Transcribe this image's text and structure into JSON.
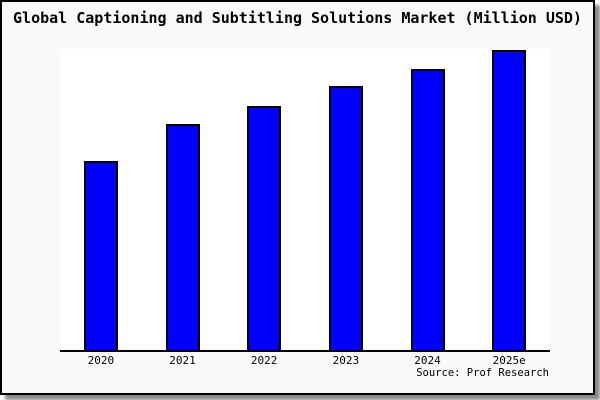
{
  "title": "Global Captioning and Subtitling Solutions Market (Million USD)",
  "source": "Source: Prof Research",
  "colors": {
    "figure_background": "#fafafa",
    "plot_background": "#ffffff",
    "figure_border": "#000000",
    "shadow": "#8a8a8a",
    "bar_fill": "#0000ff",
    "bar_border": "#000000",
    "axis_line": "#000000",
    "text": "#000000"
  },
  "chart_data": {
    "type": "bar",
    "title": "Global Captioning and Subtitling Solutions Market (Million USD)",
    "categories": [
      "2020",
      "2021",
      "2022",
      "2023",
      "2024",
      "2025e"
    ],
    "values": [
      189,
      226,
      244,
      264,
      281,
      300
    ],
    "values_note": "no y-axis tick labels or gridlines shown; values are relative bar heights estimated in pixels",
    "xlabel": "",
    "ylabel": "",
    "ylim": [
      0,
      301
    ],
    "grid": false,
    "legend": false,
    "bar_color": "#0000ff",
    "bar_border_color": "#000000",
    "source": "Source: Prof Research"
  }
}
